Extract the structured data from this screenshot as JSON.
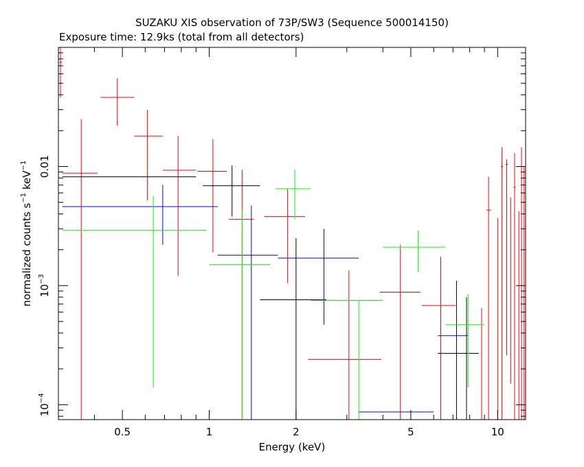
{
  "chart_data": {
    "type": "scatter",
    "title": "SUZAKU XIS observation of 73P/SW3 (Sequence 500014150)",
    "subtitle": "Exposure time: 12.9ks (total from all detectors)",
    "xlabel": "Energy (keV)",
    "ylabel": {
      "base": "normalized counts s",
      "exp1": "−1",
      "mid": " keV",
      "exp2": "−1"
    },
    "x_scale": "log",
    "y_scale": "log",
    "xlim": [
      0.3,
      12.5
    ],
    "ylim": [
      7.5e-05,
      0.1
    ],
    "x_ticks": [
      {
        "value": 0.5,
        "label": "0.5"
      },
      {
        "value": 1,
        "label": "1"
      },
      {
        "value": 2,
        "label": "2"
      },
      {
        "value": 5,
        "label": "5"
      },
      {
        "value": 10,
        "label": "10"
      }
    ],
    "y_ticks": [
      {
        "value": 0.0001,
        "base": "10",
        "exp": "−4"
      },
      {
        "value": 0.001,
        "base": "10",
        "exp": "−3"
      },
      {
        "value": 0.01,
        "label": "0.01"
      }
    ],
    "grid": false,
    "series": [
      {
        "color": "#ff0000",
        "points": [
          {
            "x": 0.305,
            "xerr": [
              0.302,
              0.309
            ],
            "y": 0.075,
            "yerr": [
              0.038,
              0.12
            ]
          },
          {
            "x": 0.36,
            "xerr": [
              0.31,
              0.41
            ],
            "y": 0.0088,
            "yerr": [
              1e-06,
              0.025
            ]
          },
          {
            "x": 0.48,
            "xerr": [
              0.42,
              0.55
            ],
            "y": 0.038,
            "yerr": [
              0.022,
              0.055
            ]
          },
          {
            "x": 0.61,
            "xerr": [
              0.55,
              0.69
            ],
            "y": 0.018,
            "yerr": [
              0.0052,
              0.03
            ]
          },
          {
            "x": 0.78,
            "xerr": [
              0.69,
              0.9
            ],
            "y": 0.0093,
            "yerr": [
              0.0012,
              0.018
            ]
          },
          {
            "x": 1.03,
            "xerr": [
              0.91,
              1.15
            ],
            "y": 0.0091,
            "yerr": [
              0.0019,
              0.017
            ]
          },
          {
            "x": 1.3,
            "xerr": [
              1.17,
              1.43
            ],
            "y": 0.0036,
            "yerr": [
              1e-06,
              0.0094
            ]
          },
          {
            "x": 1.87,
            "xerr": [
              1.55,
              2.15
            ],
            "y": 0.0038,
            "yerr": [
              0.00105,
              0.0065
            ]
          },
          {
            "x": 3.05,
            "xerr": [
              2.2,
              3.95
            ],
            "y": 0.00024,
            "yerr": [
              1e-06,
              0.00135
            ]
          },
          {
            "x": 4.6,
            "xerr": [
              3.9,
              5.4
            ],
            "y": 0.00088,
            "yerr": [
              1e-06,
              0.0022
            ]
          },
          {
            "x": 6.35,
            "xerr": [
              5.45,
              7.15
            ],
            "y": 0.00068,
            "yerr": [
              1e-06,
              0.00175
            ]
          },
          {
            "x": 8.8,
            "xerr": [
              8.8,
              8.8
            ],
            "y": 0.00043,
            "yerr": [
              1e-06,
              0.00065
            ]
          },
          {
            "x": 9.3,
            "xerr": [
              9.15,
              9.5
            ],
            "y": 0.0043,
            "yerr": [
              1e-06,
              0.0082
            ]
          },
          {
            "x": 10.0,
            "xerr": [
              10.0,
              10.0
            ],
            "y": 0.0011,
            "yerr": [
              1e-06,
              0.0037
            ]
          },
          {
            "x": 10.35,
            "xerr": [
              10.25,
              10.45
            ],
            "y": 0.01,
            "yerr": [
              1e-06,
              0.0145
            ]
          },
          {
            "x": 10.75,
            "xerr": [
              10.65,
              10.85
            ],
            "y": 0.0104,
            "yerr": [
              0.00026,
              0.0115
            ]
          },
          {
            "x": 11.1,
            "xerr": [
              11.1,
              11.1
            ],
            "y": 0.002,
            "yerr": [
              0.00015,
              0.0055
            ]
          },
          {
            "x": 11.45,
            "xerr": [
              11.35,
              11.55
            ],
            "y": 0.0067,
            "yerr": [
              1e-06,
              0.013
            ]
          },
          {
            "x": 11.85,
            "xerr": [
              11.85,
              11.85
            ],
            "y": 0.0019,
            "yerr": [
              1e-06,
              0.0042
            ]
          },
          {
            "x": 12.1,
            "xerr": [
              12.0,
              12.2
            ],
            "y": 0.001,
            "yerr": [
              1e-06,
              0.0145
            ]
          },
          {
            "x": 12.35,
            "xerr": [
              12.35,
              12.35
            ],
            "y": 0.0015,
            "yerr": [
              1e-06,
              0.01
            ]
          }
        ]
      },
      {
        "color": "#000000",
        "points": [
          {
            "x": 0.6,
            "xerr": [
              0.31,
              0.9
            ],
            "y": 0.0082,
            "yerr": [
              0.0082,
              0.0082
            ]
          },
          {
            "x": 1.2,
            "xerr": [
              0.95,
              1.5
            ],
            "y": 0.0069,
            "yerr": [
              0.0038,
              0.0102
            ]
          },
          {
            "x": 2.0,
            "xerr": [
              1.5,
              2.55
            ],
            "y": 0.00076,
            "yerr": [
              1e-06,
              0.0025
            ]
          },
          {
            "x": 7.2,
            "xerr": [
              6.2,
              8.6
            ],
            "y": 0.00027,
            "yerr": [
              1e-06,
              0.0011
            ]
          },
          {
            "x": 7.8,
            "xerr": [
              7.8,
              7.8
            ],
            "y": 0.0003,
            "yerr": [
              1e-06,
              0.0008
            ]
          }
        ]
      },
      {
        "color": "#0000ff",
        "points": [
          {
            "x": 0.69,
            "xerr": [
              0.31,
              1.07
            ],
            "y": 0.0046,
            "yerr": [
              0.0022,
              0.007
            ]
          },
          {
            "x": 1.4,
            "xerr": [
              1.07,
              1.73
            ],
            "y": 0.0018,
            "yerr": [
              1e-06,
              0.0047
            ]
          },
          {
            "x": 2.5,
            "xerr": [
              1.73,
              3.3
            ],
            "y": 0.0017,
            "yerr": [
              0.00047,
              0.003
            ]
          },
          {
            "x": 4.6,
            "xerr": [
              3.3,
              6.0
            ],
            "y": 8.7e-05,
            "yerr": [
              8.7e-05,
              8.7e-05
            ]
          },
          {
            "x": 7.0,
            "xerr": [
              6.2,
              7.9
            ],
            "y": 0.00038,
            "yerr": [
              0.00038,
              0.00038
            ]
          }
        ]
      },
      {
        "color": "#00ff00",
        "points": [
          {
            "x": 0.64,
            "xerr": [
              0.31,
              0.98
            ],
            "y": 0.0029,
            "yerr": [
              0.00014,
              0.0057
            ]
          },
          {
            "x": 1.3,
            "xerr": [
              1.0,
              1.63
            ],
            "y": 0.0015,
            "yerr": [
              1e-06,
              0.0043
            ]
          },
          {
            "x": 1.98,
            "xerr": [
              1.7,
              2.25
            ],
            "y": 0.0065,
            "yerr": [
              0.0036,
              0.0094
            ]
          },
          {
            "x": 3.3,
            "xerr": [
              2.25,
              4.0
            ],
            "y": 0.00075,
            "yerr": [
              1e-06,
              0.00075
            ]
          },
          {
            "x": 5.3,
            "xerr": [
              4.0,
              6.6
            ],
            "y": 0.0021,
            "yerr": [
              0.0013,
              0.0029
            ]
          },
          {
            "x": 7.9,
            "xerr": [
              6.6,
              9.0
            ],
            "y": 0.00047,
            "yerr": [
              0.00014,
              0.00085
            ]
          }
        ]
      }
    ]
  }
}
